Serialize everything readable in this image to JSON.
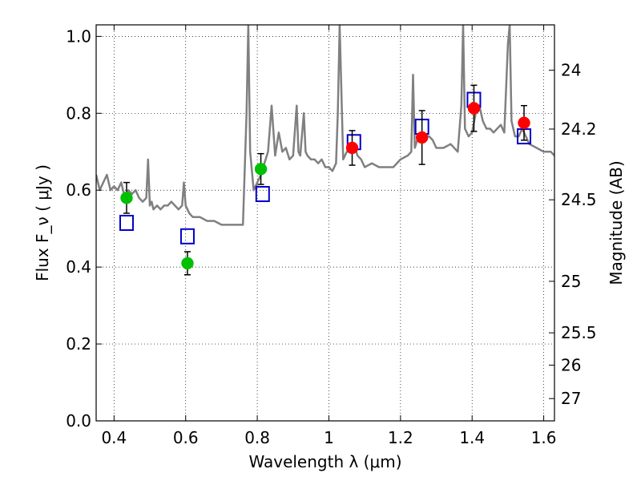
{
  "chart_data": {
    "type": "scatter",
    "xlabel": "Wavelength  λ (μm)",
    "ylabel": "Flux  F_ν  ( μJy )",
    "ylabel_right": "Magnitude (AB)",
    "xlim": [
      0.35,
      1.63
    ],
    "ylim": [
      0.0,
      1.03
    ],
    "grid": true,
    "x_ticks": [
      0.4,
      0.6,
      0.8,
      1.0,
      1.2,
      1.4,
      1.6
    ],
    "x_tick_labels": [
      "0.4",
      "0.6",
      "0.8",
      "1",
      "1.2",
      "1.4",
      "1.6"
    ],
    "y_ticks": [
      0.0,
      0.2,
      0.4,
      0.6,
      0.8,
      1.0
    ],
    "y_tick_labels": [
      "0.0",
      "0.2",
      "0.4",
      "0.6",
      "0.8",
      "1.0"
    ],
    "right_ticks": [
      {
        "label": "24",
        "flux": 0.912
      },
      {
        "label": "24.2",
        "flux": 0.759
      },
      {
        "label": "24.5",
        "flux": 0.575
      },
      {
        "label": "25",
        "flux": 0.363
      },
      {
        "label": "25.5",
        "flux": 0.229
      },
      {
        "label": "26",
        "flux": 0.145
      },
      {
        "label": "27",
        "flux": 0.058
      }
    ],
    "series": [
      {
        "marker": "line",
        "color": "#808080",
        "x": [
          0.35,
          0.36,
          0.37,
          0.38,
          0.39,
          0.4,
          0.41,
          0.42,
          0.43,
          0.44,
          0.45,
          0.46,
          0.47,
          0.48,
          0.49,
          0.495,
          0.5,
          0.505,
          0.51,
          0.52,
          0.53,
          0.54,
          0.55,
          0.56,
          0.57,
          0.58,
          0.59,
          0.595,
          0.6,
          0.605,
          0.61,
          0.62,
          0.64,
          0.66,
          0.68,
          0.7,
          0.72,
          0.74,
          0.76,
          0.77,
          0.775,
          0.78,
          0.79,
          0.8,
          0.81,
          0.82,
          0.83,
          0.84,
          0.85,
          0.86,
          0.87,
          0.88,
          0.89,
          0.9,
          0.91,
          0.915,
          0.92,
          0.93,
          0.935,
          0.94,
          0.95,
          0.96,
          0.97,
          0.98,
          0.99,
          1.0,
          1.01,
          1.02,
          1.025,
          1.03,
          1.04,
          1.05,
          1.06,
          1.07,
          1.08,
          1.09,
          1.1,
          1.12,
          1.14,
          1.16,
          1.18,
          1.2,
          1.22,
          1.23,
          1.235,
          1.24,
          1.25,
          1.26,
          1.27,
          1.28,
          1.29,
          1.3,
          1.32,
          1.34,
          1.36,
          1.37,
          1.375,
          1.38,
          1.39,
          1.4,
          1.41,
          1.42,
          1.43,
          1.44,
          1.45,
          1.46,
          1.47,
          1.48,
          1.49,
          1.5,
          1.505,
          1.51,
          1.52,
          1.53,
          1.54,
          1.55,
          1.56,
          1.58,
          1.6,
          1.62,
          1.63
        ],
        "y": [
          0.64,
          0.6,
          0.62,
          0.64,
          0.6,
          0.61,
          0.6,
          0.62,
          0.58,
          0.6,
          0.59,
          0.6,
          0.58,
          0.57,
          0.58,
          0.68,
          0.56,
          0.57,
          0.55,
          0.56,
          0.55,
          0.56,
          0.56,
          0.57,
          0.56,
          0.55,
          0.56,
          0.62,
          0.56,
          0.55,
          0.54,
          0.53,
          0.53,
          0.52,
          0.52,
          0.51,
          0.51,
          0.51,
          0.51,
          0.8,
          1.03,
          0.7,
          0.6,
          0.62,
          0.64,
          0.67,
          0.7,
          0.82,
          0.69,
          0.75,
          0.7,
          0.71,
          0.68,
          0.69,
          0.82,
          0.7,
          0.69,
          0.8,
          0.7,
          0.69,
          0.68,
          0.68,
          0.67,
          0.68,
          0.66,
          0.66,
          0.65,
          0.67,
          0.8,
          1.03,
          0.68,
          0.7,
          0.7,
          0.72,
          0.69,
          0.68,
          0.66,
          0.67,
          0.66,
          0.66,
          0.66,
          0.68,
          0.69,
          0.7,
          0.9,
          0.71,
          0.74,
          0.75,
          0.74,
          0.74,
          0.73,
          0.71,
          0.71,
          0.72,
          0.7,
          0.82,
          1.03,
          0.76,
          0.74,
          0.75,
          0.8,
          0.82,
          0.78,
          0.76,
          0.76,
          0.75,
          0.76,
          0.77,
          0.75,
          0.98,
          1.03,
          0.78,
          0.74,
          0.74,
          0.76,
          0.74,
          0.72,
          0.71,
          0.7,
          0.7,
          0.69
        ]
      },
      {
        "marker": "circle",
        "color": "#00c000",
        "x": [
          0.435,
          0.605,
          0.81
        ],
        "y": [
          0.58,
          0.41,
          0.655
        ],
        "yerr": [
          0.04,
          0.03,
          0.04
        ]
      },
      {
        "marker": "circle",
        "color": "#ff0000",
        "x": [
          1.065,
          1.26,
          1.405,
          1.545
        ],
        "y": [
          0.71,
          0.737,
          0.813,
          0.775
        ],
        "yerr": [
          0.045,
          0.07,
          0.06,
          0.045
        ]
      },
      {
        "marker": "square-open",
        "color": "#0000cc",
        "x": [
          0.435,
          0.605,
          0.815,
          1.07,
          1.26,
          1.405,
          1.545
        ],
        "y": [
          0.515,
          0.48,
          0.59,
          0.725,
          0.765,
          0.835,
          0.74
        ]
      }
    ]
  }
}
